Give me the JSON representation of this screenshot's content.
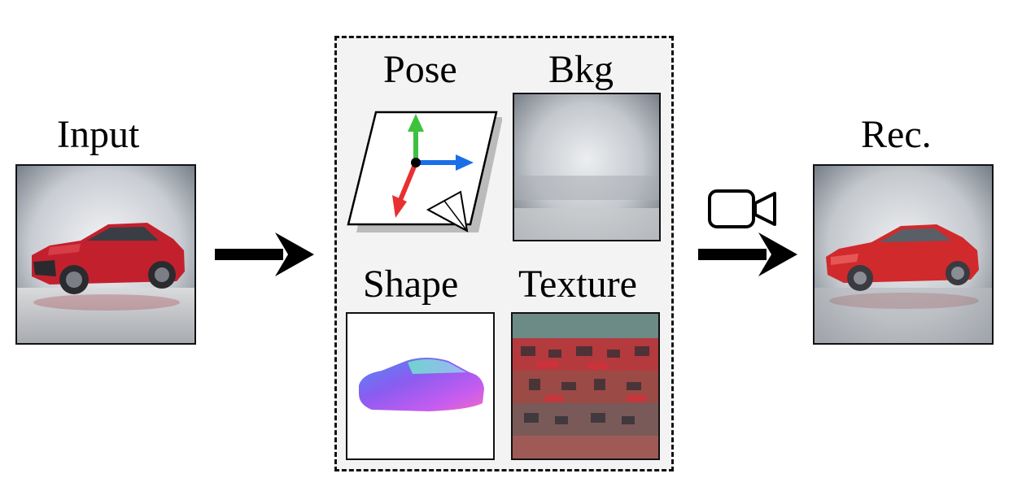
{
  "labels": {
    "input": "Input",
    "pose": "Pose",
    "bkg": "Bkg",
    "shape": "Shape",
    "texture": "Texture",
    "rec": "Rec."
  },
  "colors": {
    "car_red": "#c3202e",
    "axis_green": "#3cc23c",
    "axis_blue": "#1a6ee8",
    "axis_red": "#e83030",
    "panel_bg": "#f3f3f3"
  },
  "icons": [
    "right-arrow-icon",
    "camera-icon",
    "axes-icon"
  ]
}
